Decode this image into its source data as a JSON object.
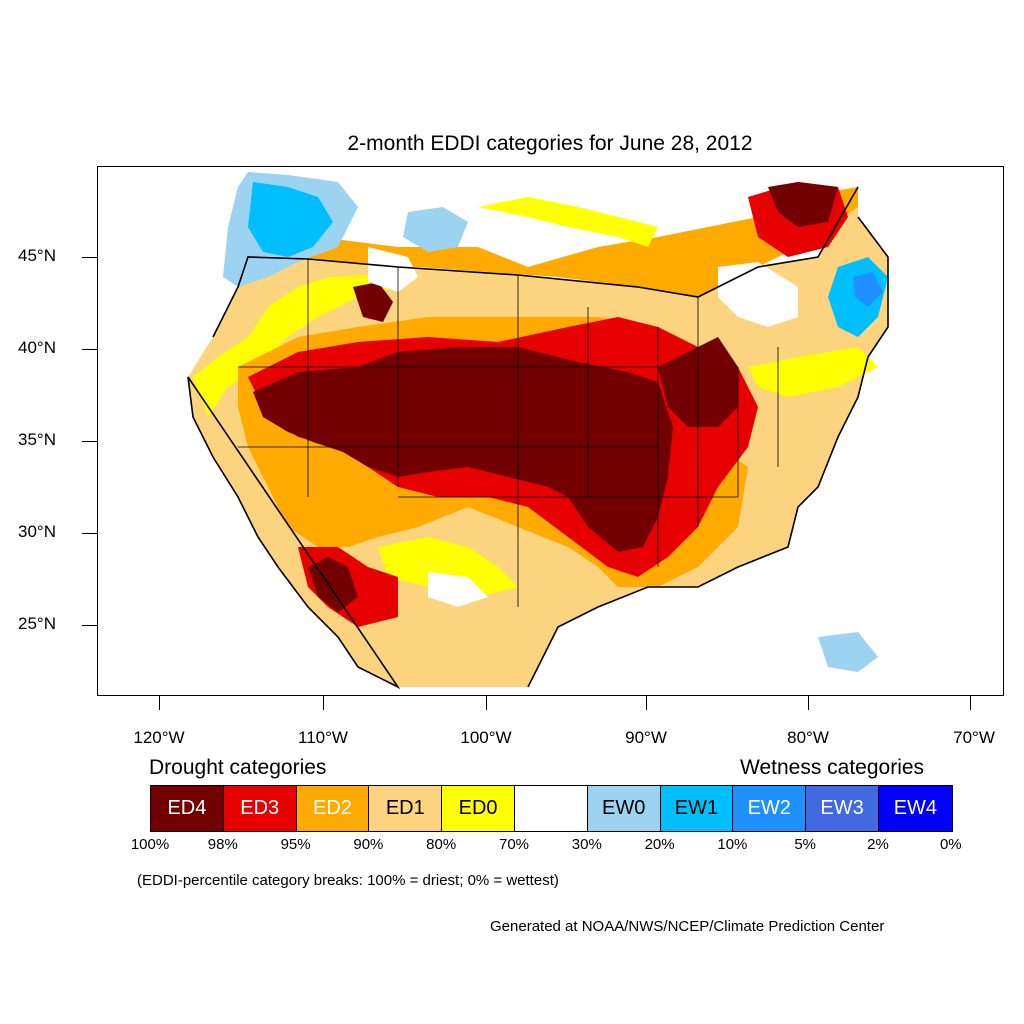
{
  "title": "2-month EDDI categories for June 28, 2012",
  "y_axis": {
    "ticks": [
      "45°N",
      "40°N",
      "35°N",
      "30°N",
      "25°N"
    ]
  },
  "x_axis": {
    "ticks": [
      "120°W",
      "110°W",
      "100°W",
      "90°W",
      "80°W",
      "70°W"
    ]
  },
  "legend": {
    "drought_heading": "Drought categories",
    "wetness_heading": "Wetness categories",
    "categories": [
      {
        "label": "ED4",
        "color": "#730000",
        "text_color": "#ffffff"
      },
      {
        "label": "ED3",
        "color": "#e60000",
        "text_color": "#ffffff"
      },
      {
        "label": "ED2",
        "color": "#ffaa00",
        "text_color": "#ffffff"
      },
      {
        "label": "ED1",
        "color": "#fcd37f",
        "text_color": "#000000"
      },
      {
        "label": "ED0",
        "color": "#ffff00",
        "text_color": "#000000"
      },
      {
        "label": "",
        "color": "#ffffff",
        "text_color": "#000000"
      },
      {
        "label": "EW0",
        "color": "#9bd3f0",
        "text_color": "#000000"
      },
      {
        "label": "EW1",
        "color": "#00bfff",
        "text_color": "#000000"
      },
      {
        "label": "EW2",
        "color": "#1e90ff",
        "text_color": "#ffffff"
      },
      {
        "label": "EW3",
        "color": "#4169e1",
        "text_color": "#ffffff"
      },
      {
        "label": "EW4",
        "color": "#0000ff",
        "text_color": "#ffffff"
      }
    ],
    "breaks": [
      "100%",
      "98%",
      "95%",
      "90%",
      "80%",
      "70%",
      "30%",
      "20%",
      "10%",
      "5%",
      "2%",
      "0%"
    ]
  },
  "note": "(EDDI-percentile category breaks: 100% = driest; 0% = wettest)",
  "credit": "Generated at NOAA/NWS/NCEP/Climate Prediction Center"
}
